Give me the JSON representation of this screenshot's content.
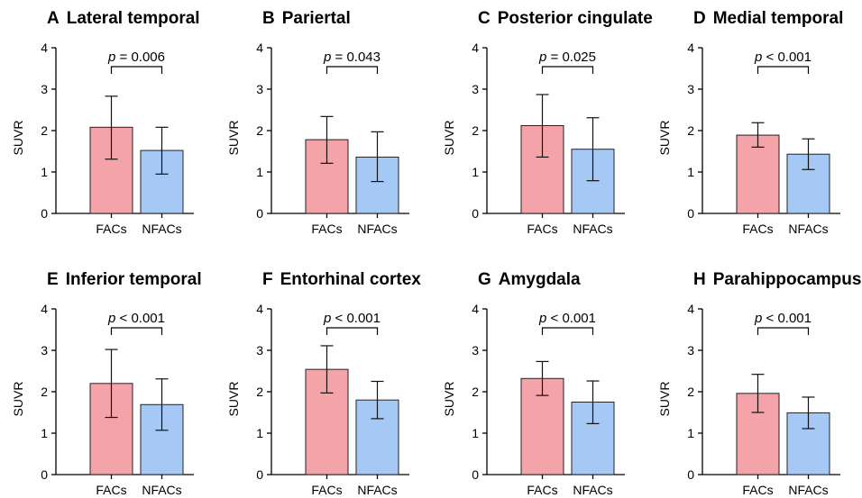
{
  "chart_data": [
    {
      "type": "bar",
      "panel": "A",
      "title": "Lateral temporal",
      "ylabel": "SUVR",
      "ylim": [
        0,
        4
      ],
      "yticks": [
        0,
        1,
        2,
        3,
        4
      ],
      "categories": [
        "FACs",
        "NFACs"
      ],
      "values": [
        2.08,
        1.52
      ],
      "error_high": [
        2.83,
        2.08
      ],
      "error_low": [
        1.31,
        0.95
      ],
      "p_prefix": "p",
      "p_text": " = 0.006",
      "colors": [
        "#f4a3a8",
        "#a6c8f5"
      ]
    },
    {
      "type": "bar",
      "panel": "B",
      "title": "Pariertal",
      "ylabel": "SUVR",
      "ylim": [
        0,
        4
      ],
      "yticks": [
        0,
        1,
        2,
        3,
        4
      ],
      "categories": [
        "FACs",
        "NFACs"
      ],
      "values": [
        1.78,
        1.36
      ],
      "error_high": [
        2.34,
        1.97
      ],
      "error_low": [
        1.21,
        0.77
      ],
      "p_prefix": "p",
      "p_text": " = 0.043",
      "colors": [
        "#f4a3a8",
        "#a6c8f5"
      ]
    },
    {
      "type": "bar",
      "panel": "C",
      "title": "Posterior cingulate",
      "ylabel": "SUVR",
      "ylim": [
        0,
        4
      ],
      "yticks": [
        0,
        1,
        2,
        3,
        4
      ],
      "categories": [
        "FACs",
        "NFACs"
      ],
      "values": [
        2.12,
        1.55
      ],
      "error_high": [
        2.87,
        2.31
      ],
      "error_low": [
        1.36,
        0.79
      ],
      "p_prefix": "p",
      "p_text": " = 0.025",
      "colors": [
        "#f4a3a8",
        "#a6c8f5"
      ]
    },
    {
      "type": "bar",
      "panel": "D",
      "title": "Medial temporal",
      "ylabel": "SUVR",
      "ylim": [
        0,
        4
      ],
      "yticks": [
        0,
        1,
        2,
        3,
        4
      ],
      "categories": [
        "FACs",
        "NFACs"
      ],
      "values": [
        1.89,
        1.43
      ],
      "error_high": [
        2.19,
        1.8
      ],
      "error_low": [
        1.6,
        1.06
      ],
      "p_prefix": "p",
      "p_text": " < 0.001",
      "colors": [
        "#f4a3a8",
        "#a6c8f5"
      ]
    },
    {
      "type": "bar",
      "panel": "E",
      "title": "Inferior temporal",
      "ylabel": "SUVR",
      "ylim": [
        0,
        4
      ],
      "yticks": [
        0,
        1,
        2,
        3,
        4
      ],
      "categories": [
        "FACs",
        "NFACs"
      ],
      "values": [
        2.2,
        1.69
      ],
      "error_high": [
        3.02,
        2.31
      ],
      "error_low": [
        1.38,
        1.07
      ],
      "p_prefix": "p",
      "p_text": " < 0.001",
      "colors": [
        "#f4a3a8",
        "#a6c8f5"
      ]
    },
    {
      "type": "bar",
      "panel": "F",
      "title": "Entorhinal cortex",
      "ylabel": "SUVR",
      "ylim": [
        0,
        4
      ],
      "yticks": [
        0,
        1,
        2,
        3,
        4
      ],
      "categories": [
        "FACs",
        "NFACs"
      ],
      "values": [
        2.54,
        1.8
      ],
      "error_high": [
        3.11,
        2.25
      ],
      "error_low": [
        1.97,
        1.35
      ],
      "p_prefix": "p",
      "p_text": " < 0.001",
      "colors": [
        "#f4a3a8",
        "#a6c8f5"
      ]
    },
    {
      "type": "bar",
      "panel": "G",
      "title": "Amygdala",
      "ylabel": "SUVR",
      "ylim": [
        0,
        4
      ],
      "yticks": [
        0,
        1,
        2,
        3,
        4
      ],
      "categories": [
        "FACs",
        "NFACs"
      ],
      "values": [
        2.32,
        1.75
      ],
      "error_high": [
        2.73,
        2.26
      ],
      "error_low": [
        1.91,
        1.23
      ],
      "p_prefix": "p",
      "p_text": " < 0.001",
      "colors": [
        "#f4a3a8",
        "#a6c8f5"
      ]
    },
    {
      "type": "bar",
      "panel": "H",
      "title": "Parahippocampus",
      "ylabel": "SUVR",
      "ylim": [
        0,
        4
      ],
      "yticks": [
        0,
        1,
        2,
        3,
        4
      ],
      "categories": [
        "FACs",
        "NFACs"
      ],
      "values": [
        1.96,
        1.49
      ],
      "error_high": [
        2.42,
        1.87
      ],
      "error_low": [
        1.5,
        1.11
      ],
      "p_prefix": "p",
      "p_text": " < 0.001",
      "colors": [
        "#f4a3a8",
        "#a6c8f5"
      ]
    }
  ]
}
